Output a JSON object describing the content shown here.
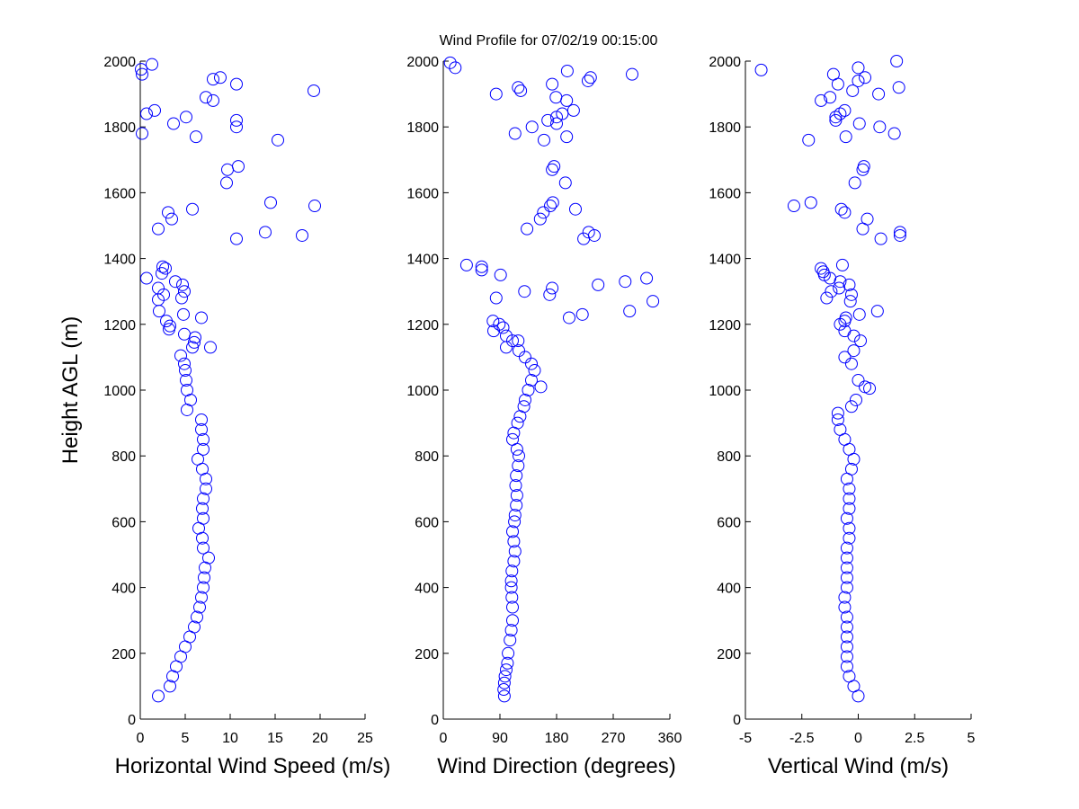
{
  "title": "Wind Profile for  07/02/19 00:15:00",
  "colors": {
    "marker": "#0000ff",
    "axis": "#000000",
    "background": "#ffffff"
  },
  "chart_data": [
    {
      "type": "scatter",
      "marker": "open-circle",
      "xlabel": "Horizontal Wind Speed (m/s)",
      "ylabel": "Height AGL (m)",
      "xlim": [
        0,
        25
      ],
      "ylim": [
        0,
        2000
      ],
      "xticks": [
        "0",
        "5",
        "10",
        "15",
        "20",
        "25"
      ],
      "yticks": [
        "0",
        "200",
        "400",
        "600",
        "800",
        "1000",
        "1200",
        "1400",
        "1600",
        "1800",
        "2000"
      ],
      "points": [
        [
          0.1,
          1975
        ],
        [
          1.3,
          1990
        ],
        [
          0.2,
          1960
        ],
        [
          8.9,
          1950
        ],
        [
          8.1,
          1945
        ],
        [
          10.7,
          1930
        ],
        [
          19.3,
          1910
        ],
        [
          7.3,
          1890
        ],
        [
          8.1,
          1880
        ],
        [
          0.7,
          1840
        ],
        [
          1.6,
          1850
        ],
        [
          5.1,
          1830
        ],
        [
          3.7,
          1810
        ],
        [
          10.7,
          1820
        ],
        [
          10.7,
          1800
        ],
        [
          0.2,
          1780
        ],
        [
          6.2,
          1770
        ],
        [
          15.3,
          1760
        ],
        [
          9.7,
          1670
        ],
        [
          10.9,
          1680
        ],
        [
          9.6,
          1630
        ],
        [
          14.5,
          1570
        ],
        [
          19.4,
          1560
        ],
        [
          3.1,
          1540
        ],
        [
          5.8,
          1550
        ],
        [
          3.5,
          1520
        ],
        [
          2.0,
          1490
        ],
        [
          13.9,
          1480
        ],
        [
          18.0,
          1470
        ],
        [
          10.7,
          1460
        ],
        [
          2.5,
          1375
        ],
        [
          2.8,
          1370
        ],
        [
          2.4,
          1355
        ],
        [
          0.7,
          1340
        ],
        [
          2.0,
          1310
        ],
        [
          3.9,
          1330
        ],
        [
          4.7,
          1320
        ],
        [
          4.9,
          1300
        ],
        [
          2.6,
          1290
        ],
        [
          4.6,
          1280
        ],
        [
          2.0,
          1275
        ],
        [
          2.1,
          1240
        ],
        [
          4.8,
          1230
        ],
        [
          6.8,
          1220
        ],
        [
          2.9,
          1210
        ],
        [
          3.3,
          1195
        ],
        [
          3.2,
          1185
        ],
        [
          4.9,
          1170
        ],
        [
          6.1,
          1160
        ],
        [
          6.0,
          1145
        ],
        [
          5.8,
          1130
        ],
        [
          7.8,
          1130
        ],
        [
          4.5,
          1105
        ],
        [
          4.9,
          1080
        ],
        [
          5.0,
          1060
        ],
        [
          5.1,
          1030
        ],
        [
          5.2,
          1000
        ],
        [
          5.6,
          970
        ],
        [
          5.2,
          940
        ],
        [
          6.8,
          910
        ],
        [
          6.8,
          880
        ],
        [
          7.0,
          850
        ],
        [
          7.0,
          820
        ],
        [
          6.4,
          790
        ],
        [
          6.9,
          760
        ],
        [
          7.3,
          730
        ],
        [
          7.3,
          700
        ],
        [
          7.0,
          670
        ],
        [
          6.9,
          640
        ],
        [
          7.0,
          610
        ],
        [
          6.5,
          580
        ],
        [
          6.9,
          550
        ],
        [
          7.0,
          520
        ],
        [
          7.6,
          490
        ],
        [
          7.2,
          460
        ],
        [
          7.1,
          430
        ],
        [
          7.0,
          400
        ],
        [
          6.8,
          370
        ],
        [
          6.6,
          340
        ],
        [
          6.3,
          310
        ],
        [
          6.0,
          280
        ],
        [
          5.5,
          250
        ],
        [
          5.0,
          220
        ],
        [
          4.5,
          190
        ],
        [
          4.0,
          160
        ],
        [
          3.6,
          130
        ],
        [
          3.3,
          100
        ],
        [
          2.0,
          70
        ]
      ]
    },
    {
      "type": "scatter",
      "marker": "open-circle",
      "xlabel": "Wind Direction (degrees)",
      "xlim": [
        0,
        360
      ],
      "ylim": [
        0,
        2000
      ],
      "xticks": [
        "0",
        "90",
        "180",
        "270",
        "360"
      ],
      "yticks": [
        "0",
        "200",
        "400",
        "600",
        "800",
        "1000",
        "1200",
        "1400",
        "1600",
        "1800",
        "2000"
      ],
      "points": [
        [
          11,
          1995
        ],
        [
          19,
          1980
        ],
        [
          197,
          1970
        ],
        [
          300,
          1960
        ],
        [
          234,
          1950
        ],
        [
          230,
          1940
        ],
        [
          173,
          1930
        ],
        [
          119,
          1920
        ],
        [
          123,
          1910
        ],
        [
          84,
          1900
        ],
        [
          179,
          1890
        ],
        [
          196,
          1880
        ],
        [
          207,
          1850
        ],
        [
          189,
          1840
        ],
        [
          180,
          1830
        ],
        [
          166,
          1820
        ],
        [
          180,
          1810
        ],
        [
          141,
          1800
        ],
        [
          114,
          1780
        ],
        [
          196,
          1770
        ],
        [
          160,
          1760
        ],
        [
          176,
          1680
        ],
        [
          173,
          1670
        ],
        [
          194,
          1630
        ],
        [
          174,
          1570
        ],
        [
          170,
          1560
        ],
        [
          210,
          1550
        ],
        [
          159,
          1540
        ],
        [
          154,
          1520
        ],
        [
          133,
          1490
        ],
        [
          231,
          1480
        ],
        [
          240,
          1470
        ],
        [
          223,
          1460
        ],
        [
          37,
          1380
        ],
        [
          61,
          1375
        ],
        [
          61,
          1365
        ],
        [
          91,
          1350
        ],
        [
          323,
          1340
        ],
        [
          289,
          1330
        ],
        [
          246,
          1320
        ],
        [
          173,
          1310
        ],
        [
          129,
          1300
        ],
        [
          169,
          1290
        ],
        [
          84,
          1280
        ],
        [
          333,
          1270
        ],
        [
          296,
          1240
        ],
        [
          221,
          1230
        ],
        [
          200,
          1220
        ],
        [
          79,
          1210
        ],
        [
          89,
          1200
        ],
        [
          95,
          1190
        ],
        [
          80,
          1180
        ],
        [
          100,
          1165
        ],
        [
          110,
          1150
        ],
        [
          119,
          1150
        ],
        [
          100,
          1130
        ],
        [
          120,
          1120
        ],
        [
          130,
          1100
        ],
        [
          140,
          1080
        ],
        [
          145,
          1060
        ],
        [
          155,
          1010
        ],
        [
          140,
          1030
        ],
        [
          135,
          1000
        ],
        [
          130,
          970
        ],
        [
          128,
          950
        ],
        [
          122,
          920
        ],
        [
          118,
          900
        ],
        [
          112,
          870
        ],
        [
          110,
          850
        ],
        [
          117,
          820
        ],
        [
          120,
          800
        ],
        [
          119,
          770
        ],
        [
          116,
          740
        ],
        [
          115,
          710
        ],
        [
          117,
          680
        ],
        [
          116,
          650
        ],
        [
          114,
          620
        ],
        [
          113,
          600
        ],
        [
          110,
          570
        ],
        [
          112,
          540
        ],
        [
          114,
          510
        ],
        [
          112,
          480
        ],
        [
          109,
          450
        ],
        [
          108,
          420
        ],
        [
          108,
          400
        ],
        [
          109,
          370
        ],
        [
          110,
          340
        ],
        [
          110,
          300
        ],
        [
          108,
          270
        ],
        [
          106,
          240
        ],
        [
          103,
          200
        ],
        [
          102,
          170
        ],
        [
          100,
          150
        ],
        [
          98,
          130
        ],
        [
          97,
          110
        ],
        [
          96,
          90
        ],
        [
          97,
          70
        ]
      ]
    },
    {
      "type": "scatter",
      "marker": "open-circle",
      "xlabel": "Vertical Wind (m/s)",
      "xlim": [
        -5,
        5
      ],
      "ylim": [
        0,
        2000
      ],
      "xticks": [
        "-5",
        "-2.5",
        "0",
        "2.5",
        "5"
      ],
      "yticks": [
        "0",
        "200",
        "400",
        "600",
        "800",
        "1000",
        "1200",
        "1400",
        "1600",
        "1800",
        "2000"
      ],
      "points": [
        [
          -4.3,
          1973
        ],
        [
          1.7,
          2000
        ],
        [
          0.0,
          1980
        ],
        [
          -1.1,
          1960
        ],
        [
          0.3,
          1950
        ],
        [
          0.0,
          1940
        ],
        [
          -0.9,
          1930
        ],
        [
          1.8,
          1920
        ],
        [
          -0.25,
          1910
        ],
        [
          0.9,
          1900
        ],
        [
          -1.25,
          1890
        ],
        [
          -1.65,
          1880
        ],
        [
          -0.6,
          1850
        ],
        [
          -0.8,
          1840
        ],
        [
          -1.0,
          1830
        ],
        [
          -1.0,
          1820
        ],
        [
          0.05,
          1810
        ],
        [
          0.95,
          1800
        ],
        [
          1.6,
          1780
        ],
        [
          -0.55,
          1770
        ],
        [
          -2.2,
          1760
        ],
        [
          0.25,
          1680
        ],
        [
          0.2,
          1670
        ],
        [
          -0.15,
          1630
        ],
        [
          -2.1,
          1570
        ],
        [
          -2.85,
          1560
        ],
        [
          -0.75,
          1550
        ],
        [
          -0.6,
          1540
        ],
        [
          0.4,
          1520
        ],
        [
          0.2,
          1490
        ],
        [
          1.85,
          1480
        ],
        [
          1.85,
          1470
        ],
        [
          1.0,
          1460
        ],
        [
          -0.7,
          1380
        ],
        [
          -1.65,
          1370
        ],
        [
          -1.55,
          1360
        ],
        [
          -1.5,
          1350
        ],
        [
          -1.25,
          1340
        ],
        [
          -0.8,
          1330
        ],
        [
          -0.4,
          1320
        ],
        [
          -0.85,
          1310
        ],
        [
          -1.2,
          1300
        ],
        [
          -0.3,
          1290
        ],
        [
          -1.4,
          1280
        ],
        [
          -0.35,
          1270
        ],
        [
          0.85,
          1240
        ],
        [
          0.05,
          1230
        ],
        [
          -0.55,
          1220
        ],
        [
          -0.6,
          1210
        ],
        [
          -0.8,
          1200
        ],
        [
          -0.6,
          1180
        ],
        [
          -0.2,
          1165
        ],
        [
          0.1,
          1150
        ],
        [
          -0.2,
          1120
        ],
        [
          -0.6,
          1100
        ],
        [
          -0.3,
          1080
        ],
        [
          0.0,
          1030
        ],
        [
          0.3,
          1010
        ],
        [
          0.5,
          1005
        ],
        [
          -0.1,
          970
        ],
        [
          -0.3,
          950
        ],
        [
          -0.9,
          930
        ],
        [
          -0.9,
          910
        ],
        [
          -0.8,
          880
        ],
        [
          -0.6,
          850
        ],
        [
          -0.4,
          820
        ],
        [
          -0.2,
          790
        ],
        [
          -0.3,
          760
        ],
        [
          -0.5,
          730
        ],
        [
          -0.4,
          700
        ],
        [
          -0.4,
          670
        ],
        [
          -0.4,
          640
        ],
        [
          -0.5,
          610
        ],
        [
          -0.4,
          580
        ],
        [
          -0.4,
          550
        ],
        [
          -0.5,
          520
        ],
        [
          -0.5,
          490
        ],
        [
          -0.5,
          460
        ],
        [
          -0.5,
          430
        ],
        [
          -0.5,
          400
        ],
        [
          -0.6,
          370
        ],
        [
          -0.6,
          340
        ],
        [
          -0.5,
          310
        ],
        [
          -0.5,
          280
        ],
        [
          -0.5,
          250
        ],
        [
          -0.5,
          220
        ],
        [
          -0.5,
          190
        ],
        [
          -0.5,
          160
        ],
        [
          -0.4,
          130
        ],
        [
          -0.2,
          100
        ],
        [
          0.0,
          70
        ]
      ]
    }
  ]
}
